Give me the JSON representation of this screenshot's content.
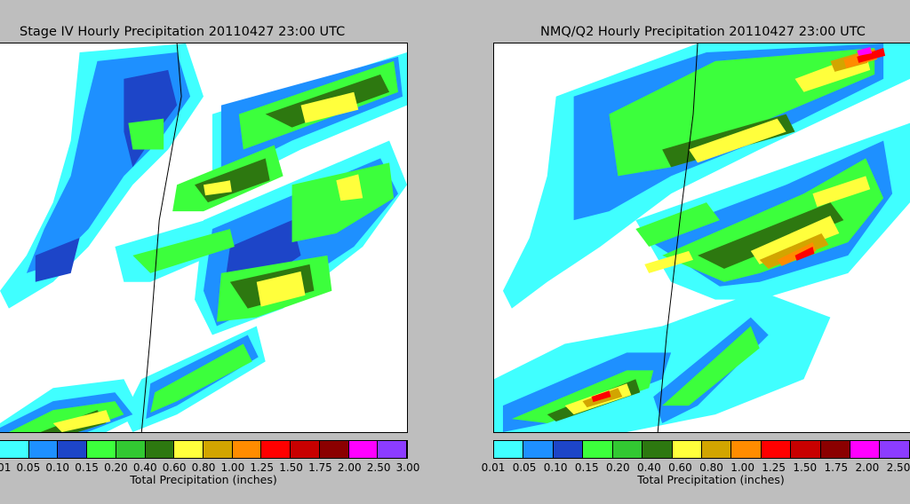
{
  "panels": [
    {
      "title": "Stage IV Hourly Precipitation 20110427 23:00 UTC"
    },
    {
      "title": "NMQ/Q2 Hourly Precipitation 20110427 23:00 UTC"
    }
  ],
  "colorbar": {
    "label": "Total Precipitation (inches)",
    "ticks": [
      "0.01",
      "0.05",
      "0.10",
      "0.15",
      "0.20",
      "0.40",
      "0.60",
      "0.80",
      "1.00",
      "1.25",
      "1.50",
      "1.75",
      "2.00",
      "2.50",
      "3.00"
    ],
    "colors": [
      "#40ffff",
      "#1e90ff",
      "#1d45c8",
      "#3cff3c",
      "#32c832",
      "#2d7810",
      "#ffff3c",
      "#d2a500",
      "#ff8c00",
      "#ff0000",
      "#c80000",
      "#8b0000",
      "#ff00ff",
      "#8c3cff"
    ]
  },
  "legend_colors": {
    "background": "#ffffff",
    "border": "#000000"
  }
}
